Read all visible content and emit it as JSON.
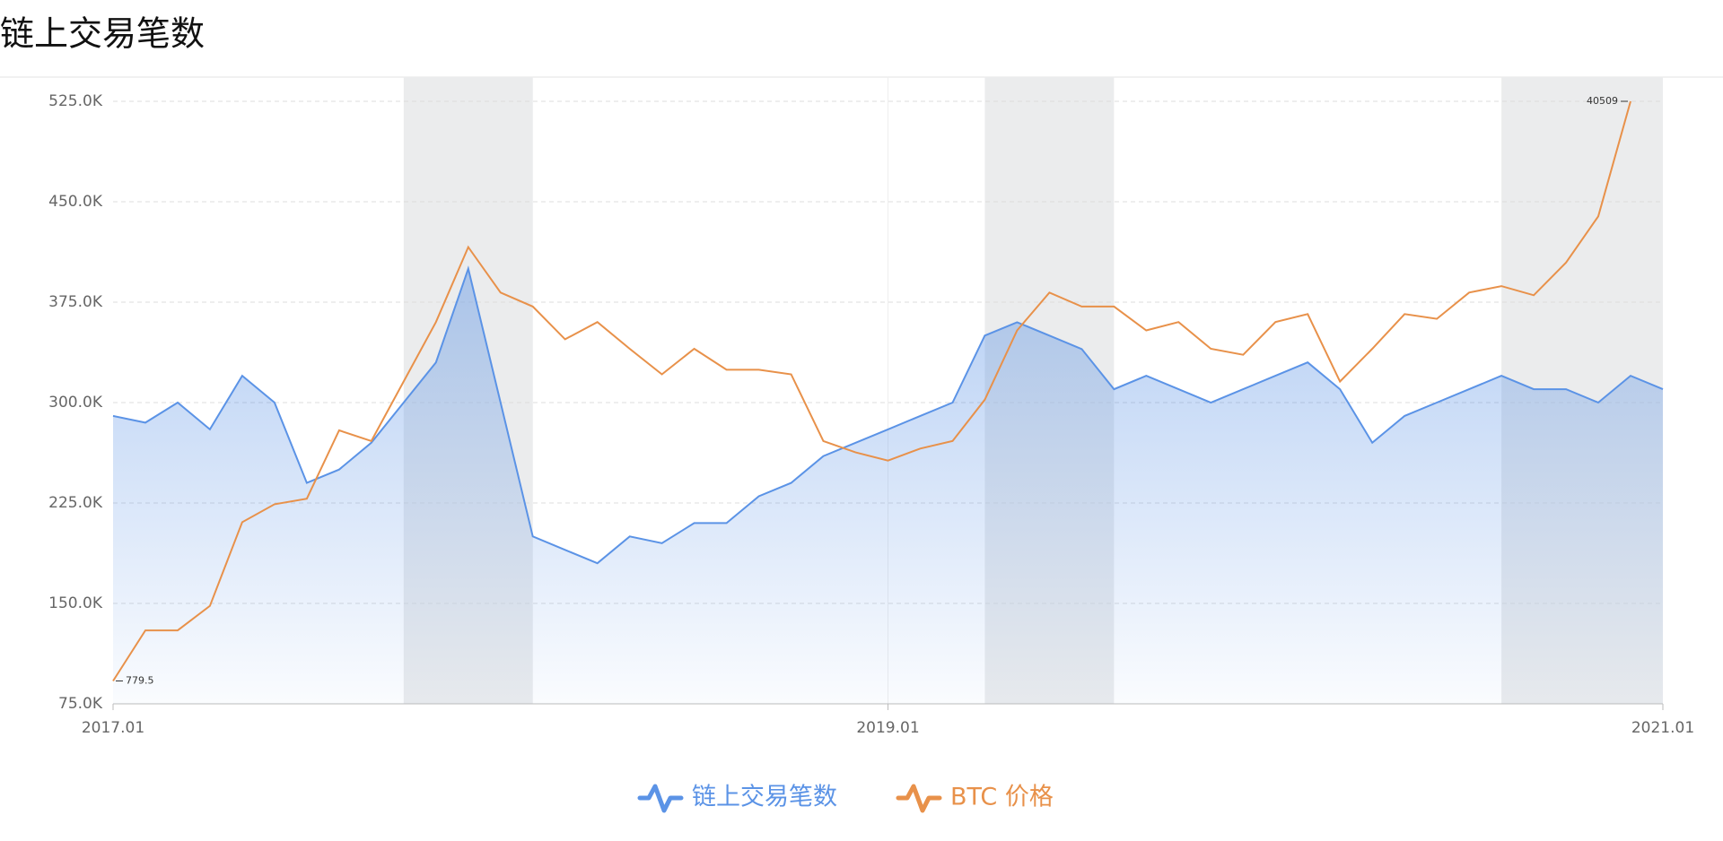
{
  "chart_data": {
    "type": "line",
    "title": "链上交易笔数",
    "x": [
      "2017.01",
      "2017.02",
      "2017.03",
      "2017.04",
      "2017.05",
      "2017.06",
      "2017.07",
      "2017.08",
      "2017.09",
      "2017.10",
      "2017.11",
      "2017.12",
      "2018.01",
      "2018.02",
      "2018.03",
      "2018.04",
      "2018.05",
      "2018.06",
      "2018.07",
      "2018.08",
      "2018.09",
      "2018.10",
      "2018.11",
      "2018.12",
      "2019.01",
      "2019.02",
      "2019.03",
      "2019.04",
      "2019.05",
      "2019.06",
      "2019.07",
      "2019.08",
      "2019.09",
      "2019.10",
      "2019.11",
      "2019.12",
      "2020.01",
      "2020.02",
      "2020.03",
      "2020.04",
      "2020.05",
      "2020.06",
      "2020.07",
      "2020.08",
      "2020.09",
      "2020.10",
      "2020.11",
      "2020.12",
      "2021.01"
    ],
    "series": [
      {
        "name": "链上交易笔数",
        "color": "#5b93e6",
        "values": [
          290000,
          285000,
          300000,
          280000,
          320000,
          300000,
          240000,
          250000,
          270000,
          300000,
          330000,
          400000,
          300000,
          200000,
          190000,
          180000,
          200000,
          195000,
          210000,
          210000,
          230000,
          240000,
          260000,
          270000,
          280000,
          290000,
          300000,
          350000,
          360000,
          350000,
          340000,
          310000,
          320000,
          310000,
          300000,
          310000,
          320000,
          330000,
          310000,
          270000,
          290000,
          300000,
          310000,
          320000,
          310000,
          310000,
          300000,
          320000,
          310000
        ]
      },
      {
        "name": "BTC 价格",
        "color": "#e8914a",
        "axis": "y2",
        "values": [
          779.5,
          1100,
          1100,
          1300,
          2300,
          2600,
          2700,
          4300,
          4000,
          6000,
          9000,
          15000,
          11000,
          10000,
          8000,
          9000,
          7500,
          6300,
          7500,
          6500,
          6500,
          6300,
          4000,
          3700,
          3500,
          3800,
          4000,
          5300,
          8500,
          11000,
          10000,
          10000,
          8500,
          9000,
          7500,
          7200,
          9000,
          9500,
          6000,
          7500,
          9500,
          9200,
          11000,
          11500,
          10800,
          13500,
          18500,
          40509,
          null
        ]
      }
    ],
    "annotations": [
      {
        "x": "2020.12",
        "value": 40509
      },
      {
        "x": "2017.01",
        "value": 779.5
      }
    ],
    "bands": [
      [
        "2017.10",
        "2018.02"
      ],
      [
        "2019.04",
        "2019.08"
      ],
      [
        "2020.08",
        "2021.01"
      ]
    ],
    "ylim": [
      75000,
      525000
    ],
    "yticks": [
      {
        "value": 75000,
        "label": "75.0K"
      },
      {
        "value": 150000,
        "label": "150.0K"
      },
      {
        "value": 225000,
        "label": "225.0K"
      },
      {
        "value": 300000,
        "label": "300.0K"
      },
      {
        "value": 375000,
        "label": "375.0K"
      },
      {
        "value": 450000,
        "label": "450.0K"
      },
      {
        "value": 525000,
        "label": "525.0K"
      }
    ],
    "y2lim": [
      667,
      40509
    ],
    "y2log": true,
    "xticks": [
      "2017.01",
      "2019.01",
      "2021.01"
    ],
    "grid": true,
    "legend": "bottom"
  }
}
